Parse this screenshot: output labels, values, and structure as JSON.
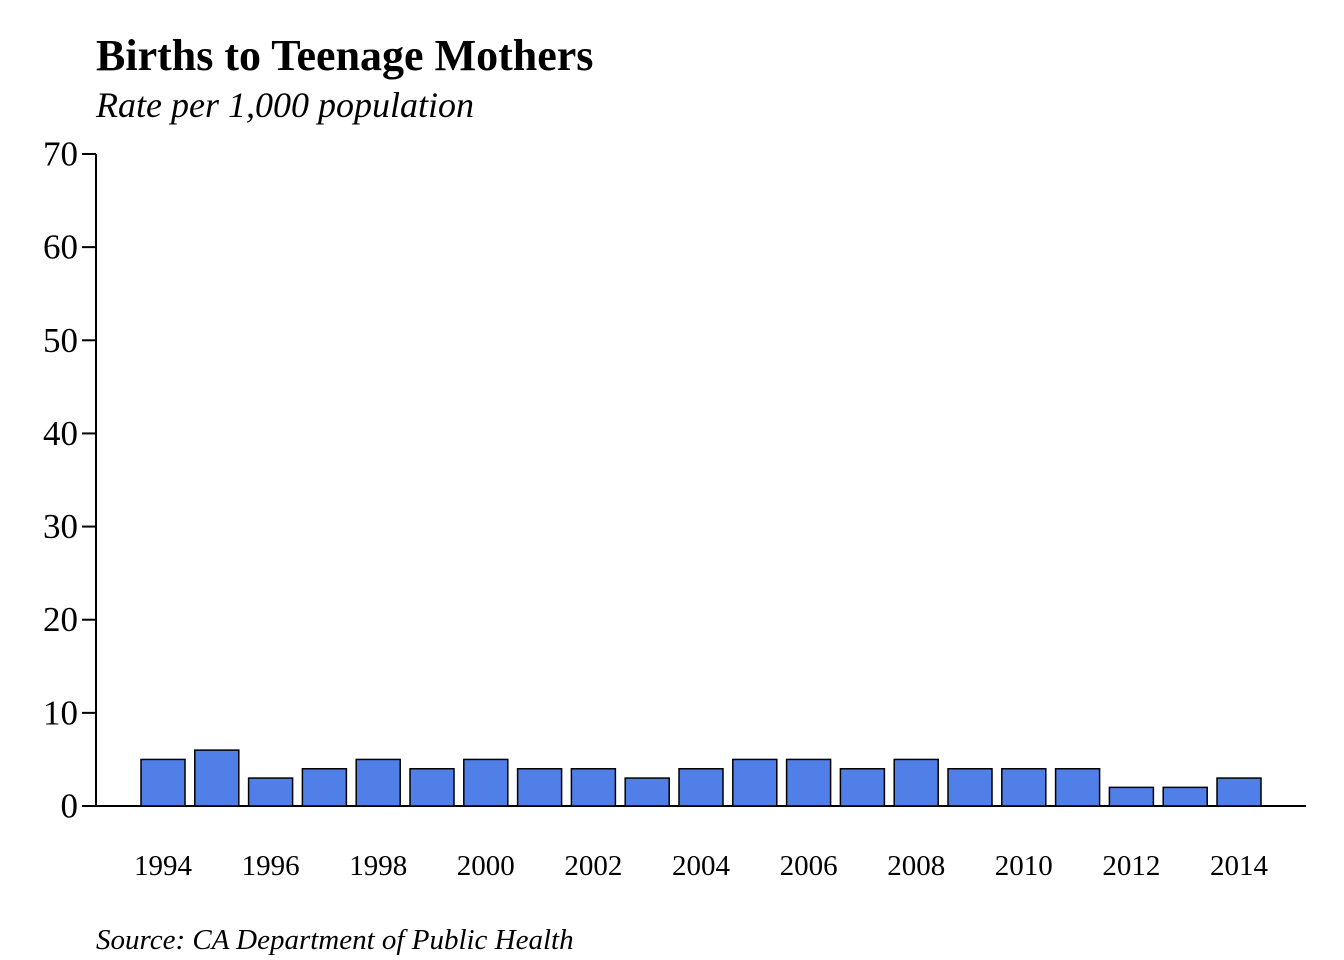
{
  "chart_data": {
    "type": "bar",
    "title": "Births to Teenage Mothers",
    "subtitle": "Rate per 1,000 population",
    "source": "Source: CA Department of Public Health",
    "categories": [
      "1994",
      "1995",
      "1996",
      "1997",
      "1998",
      "1999",
      "2000",
      "2001",
      "2002",
      "2003",
      "2004",
      "2005",
      "2006",
      "2007",
      "2008",
      "2009",
      "2010",
      "2011",
      "2012",
      "2013",
      "2014"
    ],
    "values": [
      5,
      6,
      3,
      4,
      5,
      4,
      5,
      4,
      4,
      3,
      4,
      5,
      5,
      4,
      5,
      4,
      4,
      4,
      2,
      2,
      3
    ],
    "x_tick_labels": [
      "1994",
      "1996",
      "1998",
      "2000",
      "2002",
      "2004",
      "2006",
      "2008",
      "2010",
      "2012",
      "2014"
    ],
    "y_ticks": [
      0,
      10,
      20,
      30,
      40,
      50,
      60,
      70
    ],
    "ylim": [
      0,
      70
    ],
    "xlabel": "",
    "ylabel": "",
    "grid": false,
    "bar_color": "#517fe8",
    "bar_edge_color": "#000000"
  }
}
